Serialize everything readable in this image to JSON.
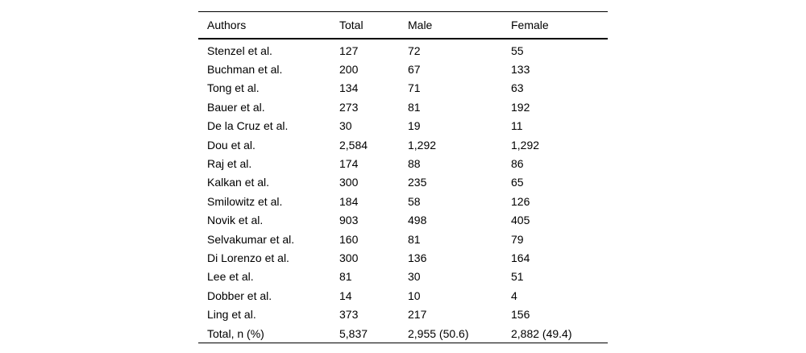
{
  "table": {
    "headers": [
      "Authors",
      "Total",
      "Male",
      "Female"
    ],
    "rows": [
      [
        "Stenzel et al.",
        "127",
        "72",
        "55"
      ],
      [
        "Buchman et al.",
        "200",
        "67",
        "133"
      ],
      [
        "Tong et al.",
        "134",
        "71",
        "63"
      ],
      [
        "Bauer et al.",
        "273",
        "81",
        "192"
      ],
      [
        "De la Cruz et al.",
        "30",
        "19",
        "11"
      ],
      [
        "Dou et al.",
        "2,584",
        "1,292",
        "1,292"
      ],
      [
        "Raj et al.",
        "174",
        "88",
        "86"
      ],
      [
        "Kalkan et al.",
        "300",
        "235",
        "65"
      ],
      [
        "Smilowitz et al.",
        "184",
        "58",
        "126"
      ],
      [
        "Novik et al.",
        "903",
        "498",
        "405"
      ],
      [
        "Selvakumar et al.",
        "160",
        "81",
        "79"
      ],
      [
        "Di Lorenzo et al.",
        "300",
        "136",
        "164"
      ],
      [
        "Lee et al.",
        "81",
        "30",
        "51"
      ],
      [
        "Dobber et al.",
        "14",
        "10",
        "4"
      ],
      [
        "Ling et al.",
        "373",
        "217",
        "156"
      ],
      [
        "Total, n (%)",
        "5,837",
        "2,955 (50.6)",
        "2,882 (49.4)"
      ]
    ],
    "colors": {
      "text": "#000000",
      "background": "#ffffff",
      "rule": "#000000"
    }
  }
}
